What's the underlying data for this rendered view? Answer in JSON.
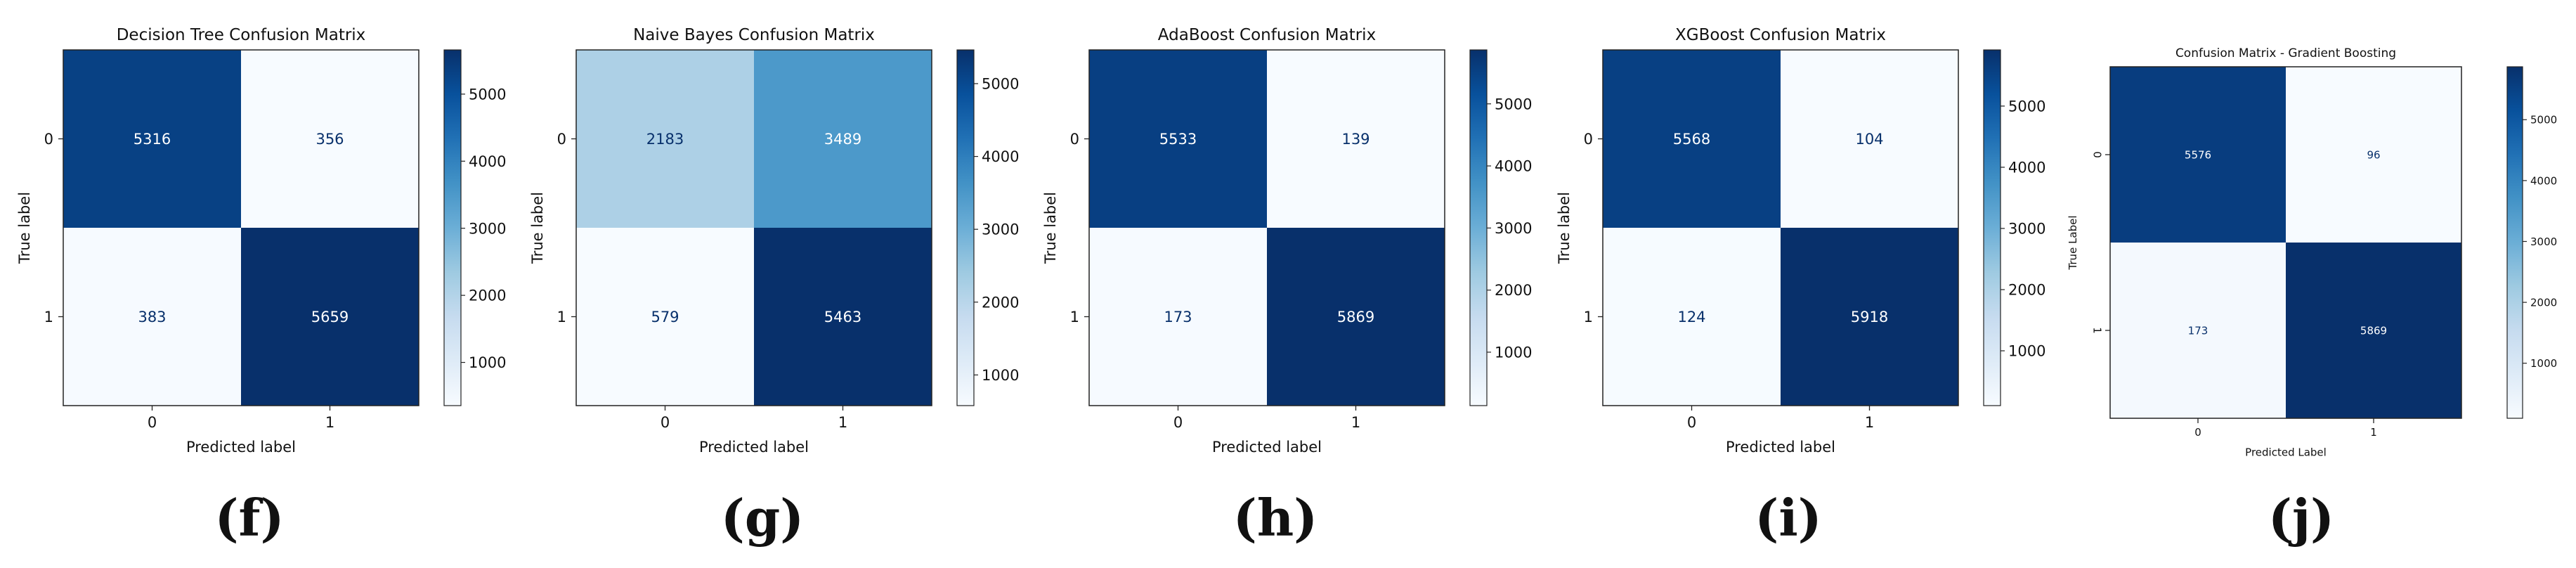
{
  "chart_data": [
    {
      "type": "heatmap",
      "title": "Decision Tree Confusion Matrix",
      "xlabel": "Predicted label",
      "ylabel": "True label",
      "x_categories": [
        "0",
        "1"
      ],
      "y_categories": [
        "0",
        "1"
      ],
      "values": [
        [
          5316,
          356
        ],
        [
          383,
          5659
        ]
      ],
      "colormap": "Blues",
      "colorbar_ticks": [
        1000,
        2000,
        3000,
        4000,
        5000
      ],
      "caption": "(f)"
    },
    {
      "type": "heatmap",
      "title": "Naive Bayes Confusion Matrix",
      "xlabel": "Predicted label",
      "ylabel": "True label",
      "x_categories": [
        "0",
        "1"
      ],
      "y_categories": [
        "0",
        "1"
      ],
      "values": [
        [
          2183,
          3489
        ],
        [
          579,
          5463
        ]
      ],
      "colormap": "Blues",
      "colorbar_ticks": [
        1000,
        2000,
        3000,
        4000,
        5000
      ],
      "caption": "(g)"
    },
    {
      "type": "heatmap",
      "title": "AdaBoost Confusion Matrix",
      "xlabel": "Predicted label",
      "ylabel": "True label",
      "x_categories": [
        "0",
        "1"
      ],
      "y_categories": [
        "0",
        "1"
      ],
      "values": [
        [
          5533,
          139
        ],
        [
          173,
          5869
        ]
      ],
      "colormap": "Blues",
      "colorbar_ticks": [
        1000,
        2000,
        3000,
        4000,
        5000
      ],
      "caption": "(h)"
    },
    {
      "type": "heatmap",
      "title": "XGBoost Confusion Matrix",
      "xlabel": "Predicted label",
      "ylabel": "True label",
      "x_categories": [
        "0",
        "1"
      ],
      "y_categories": [
        "0",
        "1"
      ],
      "values": [
        [
          5568,
          104
        ],
        [
          124,
          5918
        ]
      ],
      "colormap": "Blues",
      "colorbar_ticks": [
        1000,
        2000,
        3000,
        4000,
        5000
      ],
      "caption": "(i)"
    },
    {
      "type": "heatmap",
      "title": "Confusion Matrix - Gradient Boosting",
      "xlabel": "Predicted Label",
      "ylabel": "True Label",
      "x_categories": [
        "0",
        "1"
      ],
      "y_categories": [
        "0",
        "1"
      ],
      "values": [
        [
          5576,
          96
        ],
        [
          173,
          5869
        ]
      ],
      "colormap": "Blues",
      "colorbar_ticks": [
        1000,
        2000,
        3000,
        4000,
        5000
      ],
      "caption": "(j)"
    }
  ]
}
